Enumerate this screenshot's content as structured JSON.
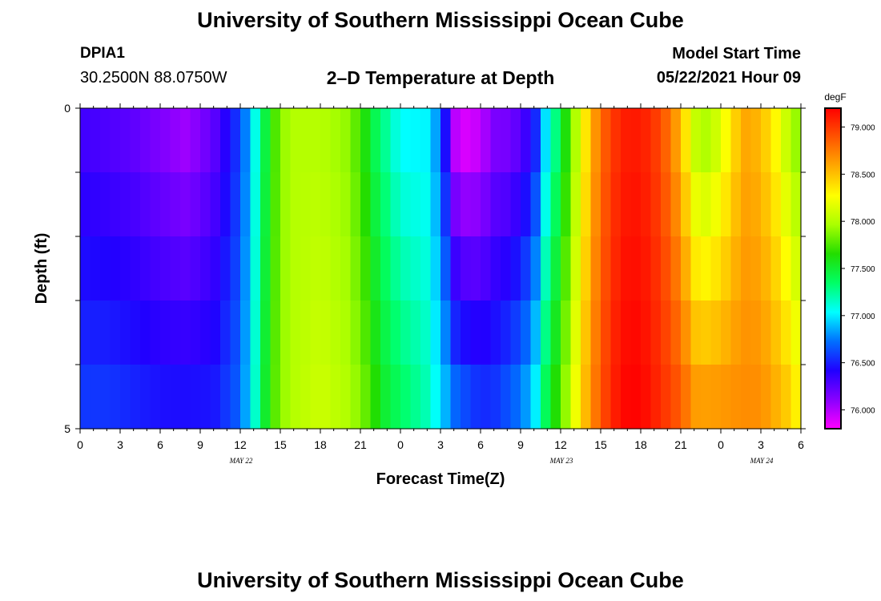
{
  "title": "University of Southern Mississippi Ocean Cube",
  "footer_title": "University of Southern Mississippi Ocean Cube",
  "station": {
    "id": "DPIA1",
    "coords": "30.2500N  88.0750W"
  },
  "plot_title": "2–D Temperature at Depth",
  "model_start": {
    "label": "Model Start Time",
    "value": "05/22/2021 Hour 09"
  },
  "chart_data": {
    "type": "heatmap",
    "xlabel": "Forecast Time(Z)",
    "ylabel": "Depth (ft)",
    "x_tick_labels": [
      "0",
      "3",
      "6",
      "9",
      "12",
      "15",
      "18",
      "21",
      "0",
      "3",
      "6",
      "9",
      "12",
      "15",
      "18",
      "21",
      "0",
      "3",
      "6"
    ],
    "x_date_labels": [
      {
        "label": "MAY 22",
        "hour": 12
      },
      {
        "label": "MAY 23",
        "hour": 36
      },
      {
        "label": "MAY 24",
        "hour": 51
      }
    ],
    "x_range_hours": [
      0,
      54
    ],
    "y_tick_labels": [
      "0",
      "5"
    ],
    "y_range_ft": [
      0,
      5
    ],
    "depth_levels_ft": [
      0,
      1,
      2,
      3,
      4,
      5
    ],
    "colorbar": {
      "unit": "degF",
      "min": 75.8,
      "max": 79.2,
      "tick_values": [
        76.0,
        76.5,
        77.0,
        77.5,
        78.0,
        78.5,
        79.0
      ],
      "tick_labels": [
        "76.000",
        "76.500",
        "77.000",
        "77.500",
        "78.000",
        "78.500",
        "79.000"
      ],
      "colors": [
        "#ff00ff",
        "#8800ff",
        "#2000ff",
        "#0070ff",
        "#00ffff",
        "#00ff66",
        "#22dd00",
        "#aaff00",
        "#ffff00",
        "#ffaa00",
        "#ff5500",
        "#ff0000"
      ]
    },
    "profile_hours": [
      0,
      2,
      4,
      6,
      8,
      10,
      11,
      12,
      12.5,
      13,
      13.5,
      14,
      15,
      16,
      18,
      20,
      21,
      22,
      23,
      24,
      25,
      26,
      27,
      28,
      29,
      30,
      31,
      32,
      33,
      34,
      35,
      36,
      37,
      38,
      39,
      40,
      41,
      42,
      43,
      44,
      45,
      46,
      47,
      48,
      49,
      50,
      51,
      52,
      53,
      54
    ],
    "surface_degF": [
      76.3,
      76.25,
      76.2,
      76.1,
      76.0,
      76.2,
      76.4,
      76.6,
      76.8,
      77.0,
      77.3,
      77.5,
      77.9,
      78.0,
      78.0,
      77.9,
      77.7,
      77.4,
      77.2,
      77.0,
      77.0,
      77.0,
      76.7,
      75.9,
      75.8,
      75.9,
      76.1,
      76.1,
      76.2,
      76.4,
      77.0,
      77.4,
      77.9,
      78.4,
      78.8,
      79.0,
      79.1,
      79.1,
      79.0,
      78.8,
      78.5,
      78.0,
      77.9,
      78.1,
      78.4,
      78.6,
      78.5,
      78.3,
      78.0,
      77.8
    ],
    "bottom_degF": [
      76.6,
      76.6,
      76.55,
      76.5,
      76.5,
      76.5,
      76.6,
      76.7,
      76.9,
      77.1,
      77.3,
      77.6,
      77.9,
      78.0,
      78.1,
      78.0,
      77.9,
      77.7,
      77.5,
      77.4,
      77.3,
      77.2,
      77.0,
      76.8,
      76.7,
      76.6,
      76.6,
      76.7,
      76.8,
      77.0,
      77.5,
      77.8,
      78.2,
      78.6,
      78.9,
      79.1,
      79.2,
      79.2,
      79.1,
      79.0,
      78.9,
      78.7,
      78.7,
      78.7,
      78.7,
      78.7,
      78.7,
      78.6,
      78.5,
      78.3
    ]
  }
}
